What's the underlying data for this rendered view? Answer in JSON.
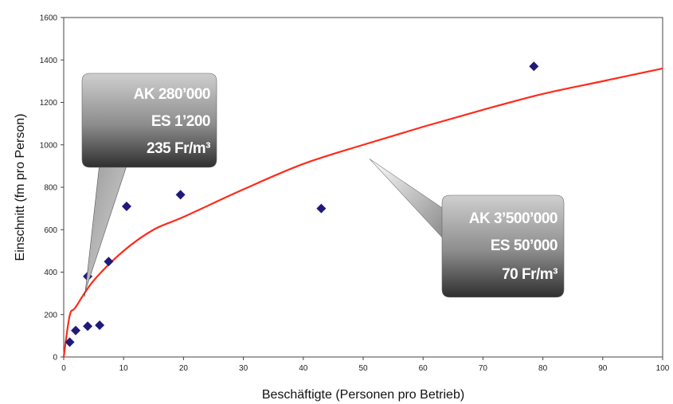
{
  "chart_data": {
    "type": "scatter",
    "xlabel": "Beschäftigte (Personen pro Betrieb)",
    "ylabel": "Einschnitt (fm pro Person)",
    "xlim": [
      0,
      100
    ],
    "ylim": [
      0,
      1600
    ],
    "x_ticks": [
      "0",
      "10",
      "20",
      "30",
      "40",
      "50",
      "60",
      "70",
      "80",
      "90",
      "100"
    ],
    "y_ticks": [
      "0",
      "200",
      "400",
      "600",
      "800",
      "1000",
      "1200",
      "1400",
      "1600"
    ],
    "grid": false,
    "series": [
      {
        "kind": "points",
        "marker": "diamond",
        "color": "#1f1a7a",
        "points": [
          {
            "x": 1,
            "y": 70
          },
          {
            "x": 2,
            "y": 125
          },
          {
            "x": 4,
            "y": 145
          },
          {
            "x": 6,
            "y": 150
          },
          {
            "x": 4,
            "y": 380
          },
          {
            "x": 7.5,
            "y": 450
          },
          {
            "x": 10.5,
            "y": 710
          },
          {
            "x": 19.5,
            "y": 765
          },
          {
            "x": 43,
            "y": 700
          },
          {
            "x": 78.5,
            "y": 1370
          }
        ]
      },
      {
        "kind": "trend",
        "color": "#ff2a1a",
        "points": [
          {
            "x": 0,
            "y": 0
          },
          {
            "x": 1,
            "y": 195
          },
          {
            "x": 2,
            "y": 235
          },
          {
            "x": 5,
            "y": 360
          },
          {
            "x": 10,
            "y": 500
          },
          {
            "x": 15,
            "y": 600
          },
          {
            "x": 20,
            "y": 660
          },
          {
            "x": 30,
            "y": 790
          },
          {
            "x": 40,
            "y": 910
          },
          {
            "x": 50,
            "y": 1000
          },
          {
            "x": 60,
            "y": 1085
          },
          {
            "x": 70,
            "y": 1165
          },
          {
            "x": 80,
            "y": 1240
          },
          {
            "x": 90,
            "y": 1300
          },
          {
            "x": 100,
            "y": 1360
          }
        ]
      }
    ],
    "annotations": [
      {
        "lines": [
          "AK 280’000",
          "ES 1’200",
          "235 Fr/m³"
        ],
        "pointer_to": {
          "x": 3.5,
          "y": 290
        }
      },
      {
        "lines": [
          "AK 3’500’000",
          "ES 50’000",
          "70 Fr/m³"
        ],
        "pointer_to": {
          "x": 50,
          "y": 990
        }
      }
    ]
  }
}
